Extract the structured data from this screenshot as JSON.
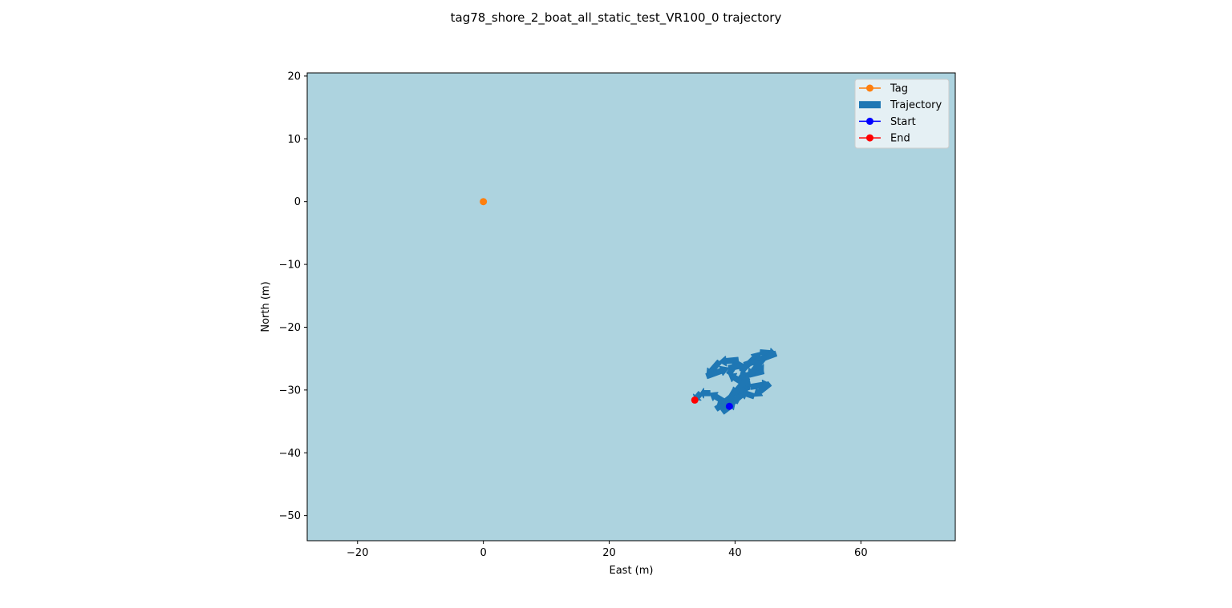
{
  "chart_data": {
    "type": "scatter",
    "title": "tag78_shore_2_boat_all_static_test_VR100_0 trajectory",
    "xlabel": "East (m)",
    "ylabel": "North (m)",
    "xlim": [
      -28,
      75
    ],
    "ylim": [
      -54,
      20.5
    ],
    "xticks": [
      -20,
      0,
      20,
      40,
      60
    ],
    "yticks": [
      20,
      10,
      0,
      -10,
      -20,
      -30,
      -40,
      -50
    ],
    "xtick_labels": [
      "−20",
      "0",
      "20",
      "40",
      "60"
    ],
    "ytick_labels": [
      "20",
      "10",
      "0",
      "−10",
      "−20",
      "−30",
      "−40",
      "−50"
    ],
    "grid": false,
    "legend_position": "top-right",
    "background_color": "#add3df",
    "series": [
      {
        "name": "Tag",
        "style": "marker",
        "color": "#ff7f0e",
        "points": [
          [
            0,
            0
          ]
        ]
      },
      {
        "name": "Trajectory",
        "style": "arrows",
        "color": "#1f77b4",
        "points": [
          [
            39,
            -32.5
          ],
          [
            42,
            -30
          ],
          [
            41,
            -27
          ],
          [
            44,
            -24
          ],
          [
            46.5,
            -24.2
          ],
          [
            43,
            -25.5
          ],
          [
            44.5,
            -27
          ],
          [
            40.5,
            -28
          ],
          [
            42.5,
            -29.5
          ],
          [
            45.5,
            -29
          ],
          [
            43,
            -31
          ],
          [
            40,
            -30
          ],
          [
            38,
            -33.5
          ],
          [
            40,
            -32
          ],
          [
            41.5,
            -29
          ],
          [
            39,
            -27.5
          ],
          [
            40.5,
            -25.2
          ],
          [
            37.5,
            -25.5
          ],
          [
            35.5,
            -27.8
          ],
          [
            39,
            -26.5
          ],
          [
            41.5,
            -26
          ],
          [
            44.5,
            -25
          ],
          [
            42,
            -28
          ],
          [
            39.5,
            -31
          ],
          [
            37,
            -33
          ],
          [
            38.5,
            -32
          ],
          [
            36,
            -30.5
          ],
          [
            34.5,
            -30.5
          ],
          [
            33.7,
            -31.5
          ]
        ]
      },
      {
        "name": "Start",
        "style": "marker",
        "color": "#0000ff",
        "points": [
          [
            39.1,
            -32.6
          ]
        ]
      },
      {
        "name": "End",
        "style": "marker",
        "color": "#ff0000",
        "points": [
          [
            33.6,
            -31.6
          ]
        ]
      }
    ]
  }
}
